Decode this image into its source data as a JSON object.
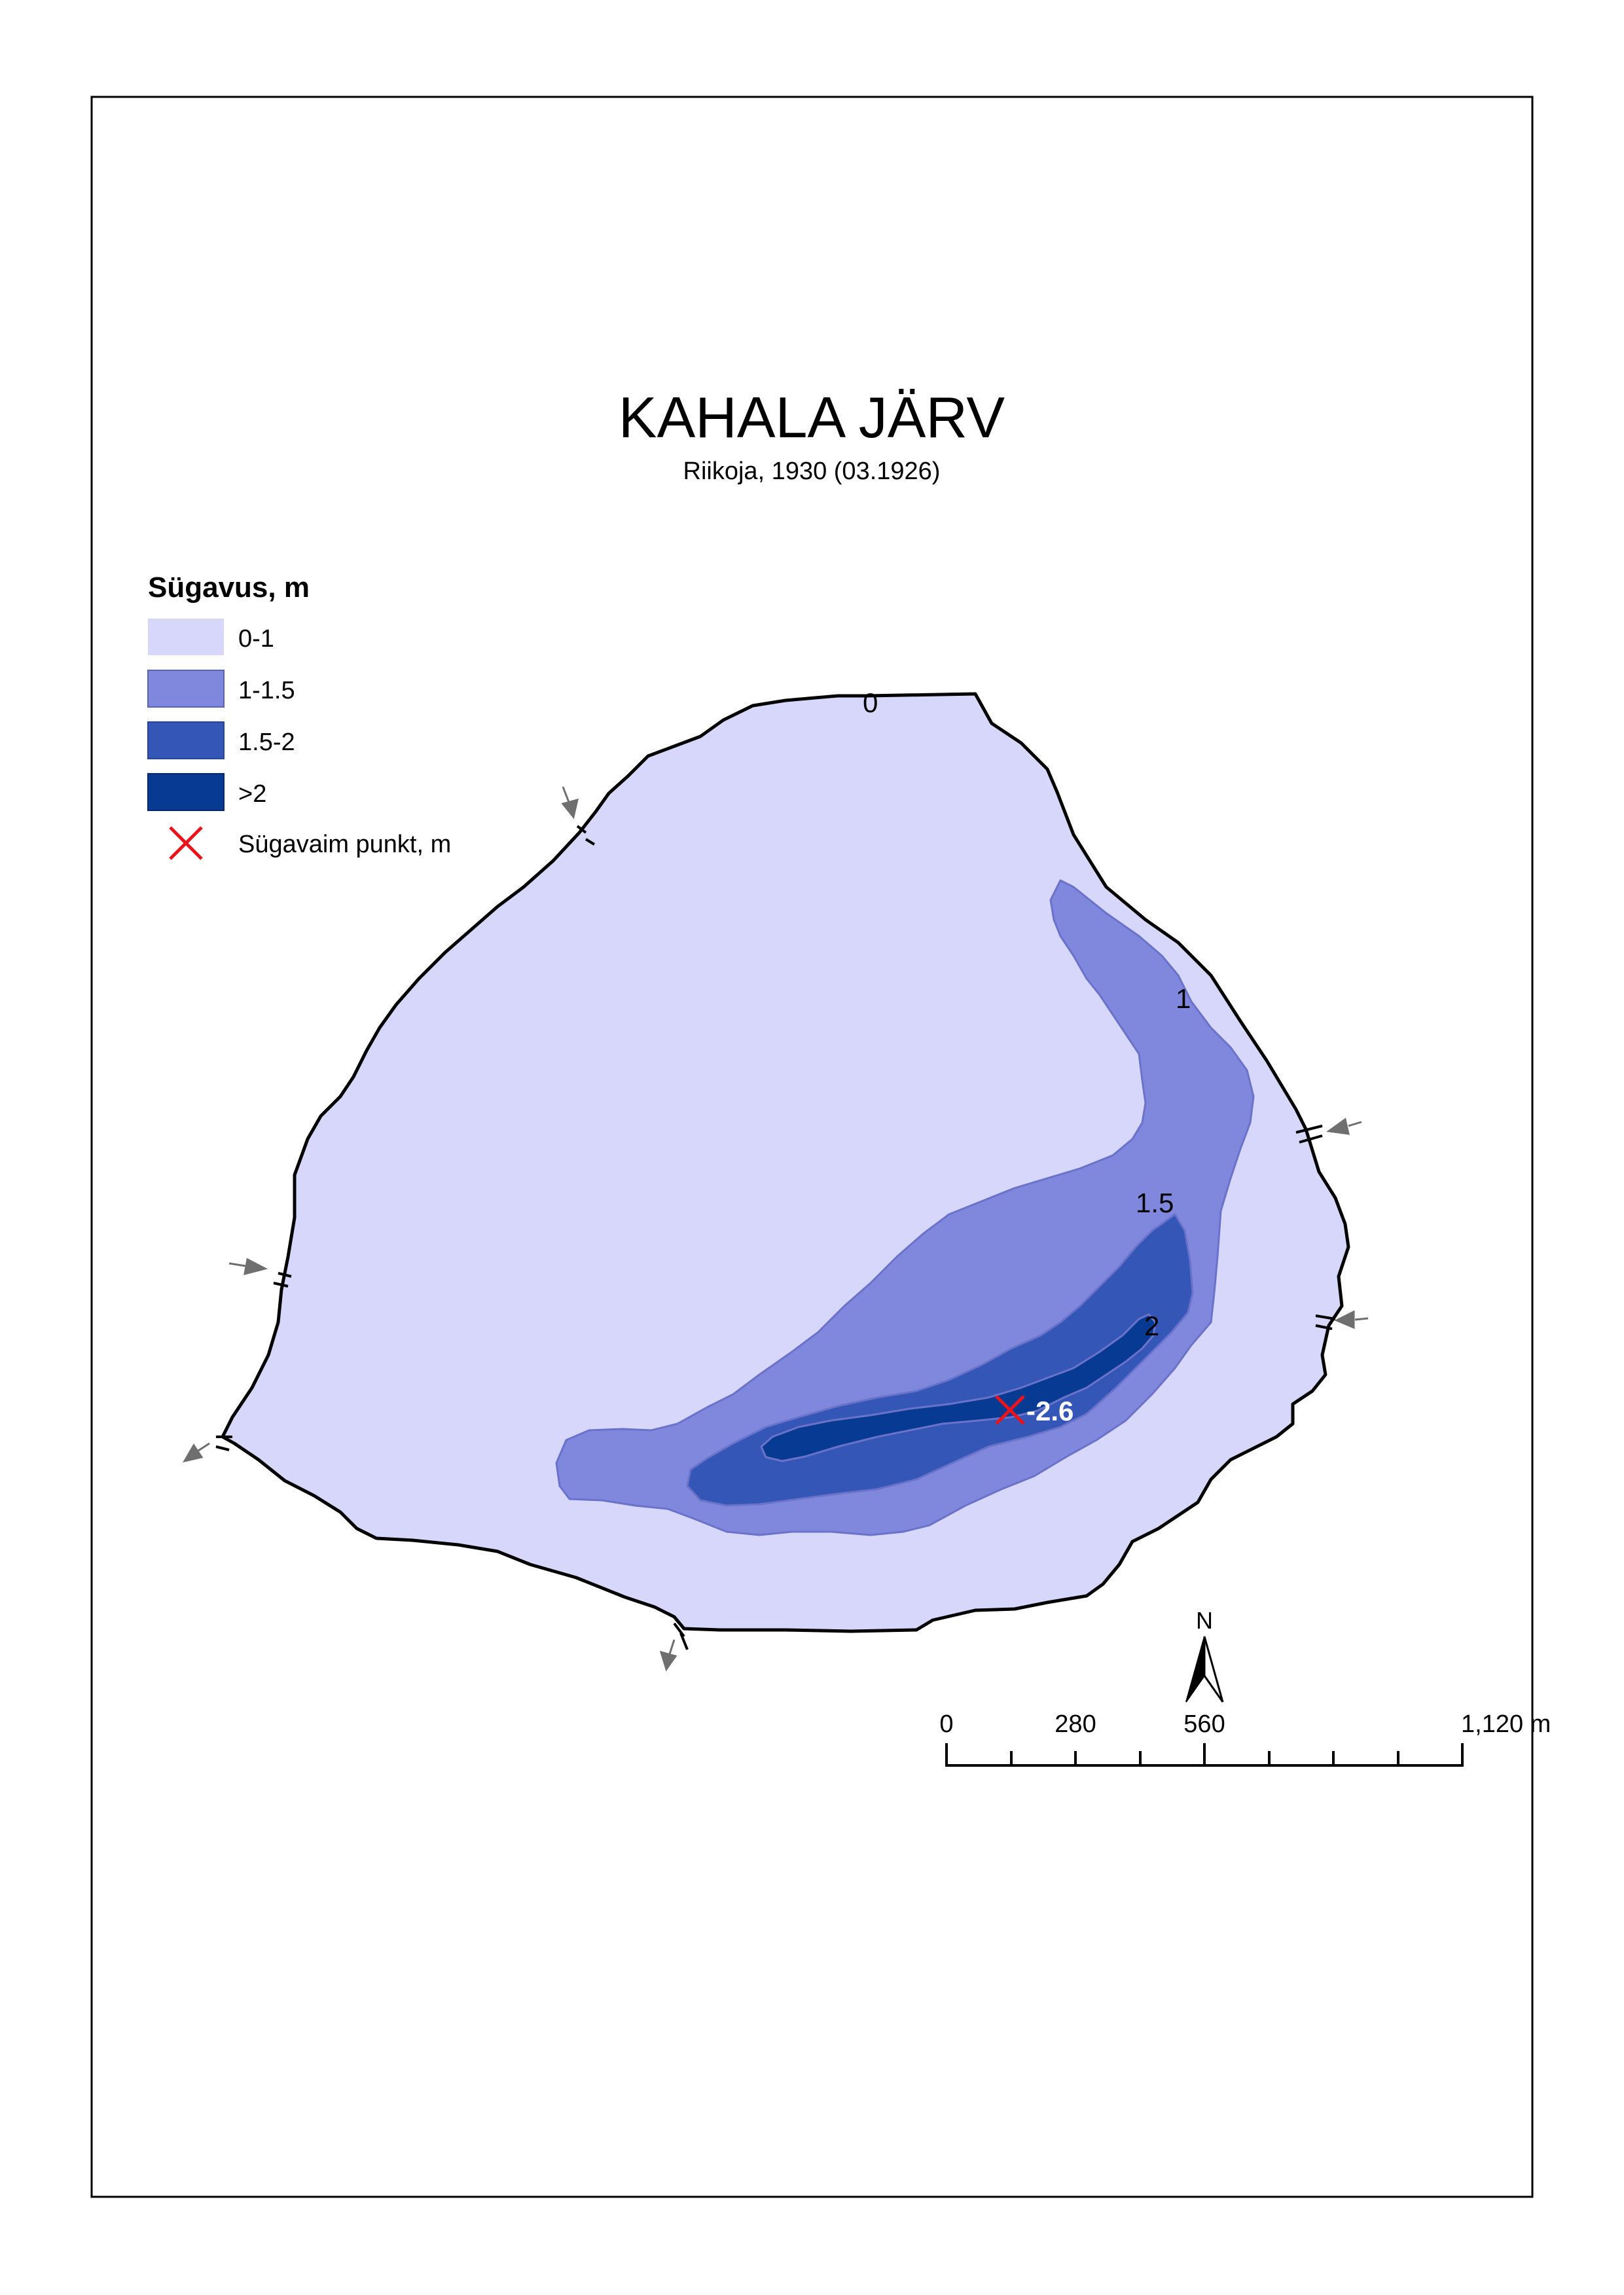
{
  "map": {
    "title": "KAHALA JÄRV",
    "subtitle": "Riikoja, 1930 (03.1926)"
  },
  "legend": {
    "title": "Sügavus, m",
    "items": [
      {
        "label": "0-1",
        "color": "#d6d7fb"
      },
      {
        "label": "1-1.5",
        "color": "#7f88dc"
      },
      {
        "label": "1.5-2",
        "color": "#3457b7"
      },
      {
        "label": ">2",
        "color": "#063a93"
      }
    ],
    "deepest_point": {
      "label": "Sügavaim punkt, m",
      "color": "#e8131b",
      "icon": "x-marker-icon"
    }
  },
  "contour_labels": {
    "c0": "0",
    "c1": "1",
    "c15": "1.5",
    "c2": "2"
  },
  "deepest_value": "-2.6",
  "north_arrow": {
    "label": "N",
    "icon": "north-arrow-icon"
  },
  "scale_bar": {
    "labels": [
      "0",
      "280",
      "560",
      "1,120 m"
    ]
  },
  "inflow_icons": "arrow-icon"
}
